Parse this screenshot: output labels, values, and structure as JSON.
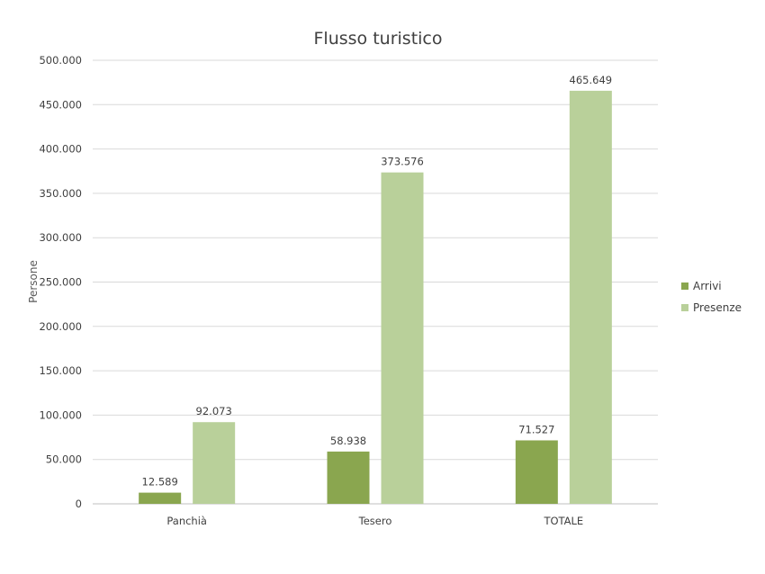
{
  "chart_data": {
    "type": "bar",
    "title": "Flusso turistico",
    "ylabel": "Persone",
    "xlabel": "",
    "categories": [
      "Panchià",
      "Tesero",
      "TOTALE"
    ],
    "series": [
      {
        "name": "Arrivi",
        "color": "#8aa64f",
        "values": [
          12589,
          58938,
          71527
        ],
        "labels": [
          "12.589",
          "58.938",
          "71.527"
        ]
      },
      {
        "name": "Presenze",
        "color": "#b9d09a",
        "values": [
          92073,
          373576,
          465649
        ],
        "labels": [
          "92.073",
          "373.576",
          "465.649"
        ]
      }
    ],
    "ylim": [
      0,
      500000
    ],
    "yticks": [
      0,
      50000,
      100000,
      150000,
      200000,
      250000,
      300000,
      350000,
      400000,
      450000,
      500000
    ],
    "ytick_labels": [
      "0",
      "50.000",
      "100.000",
      "150.000",
      "200.000",
      "250.000",
      "300.000",
      "350.000",
      "400.000",
      "450.000",
      "500.000"
    ],
    "grid": true,
    "legend_position": "right"
  }
}
